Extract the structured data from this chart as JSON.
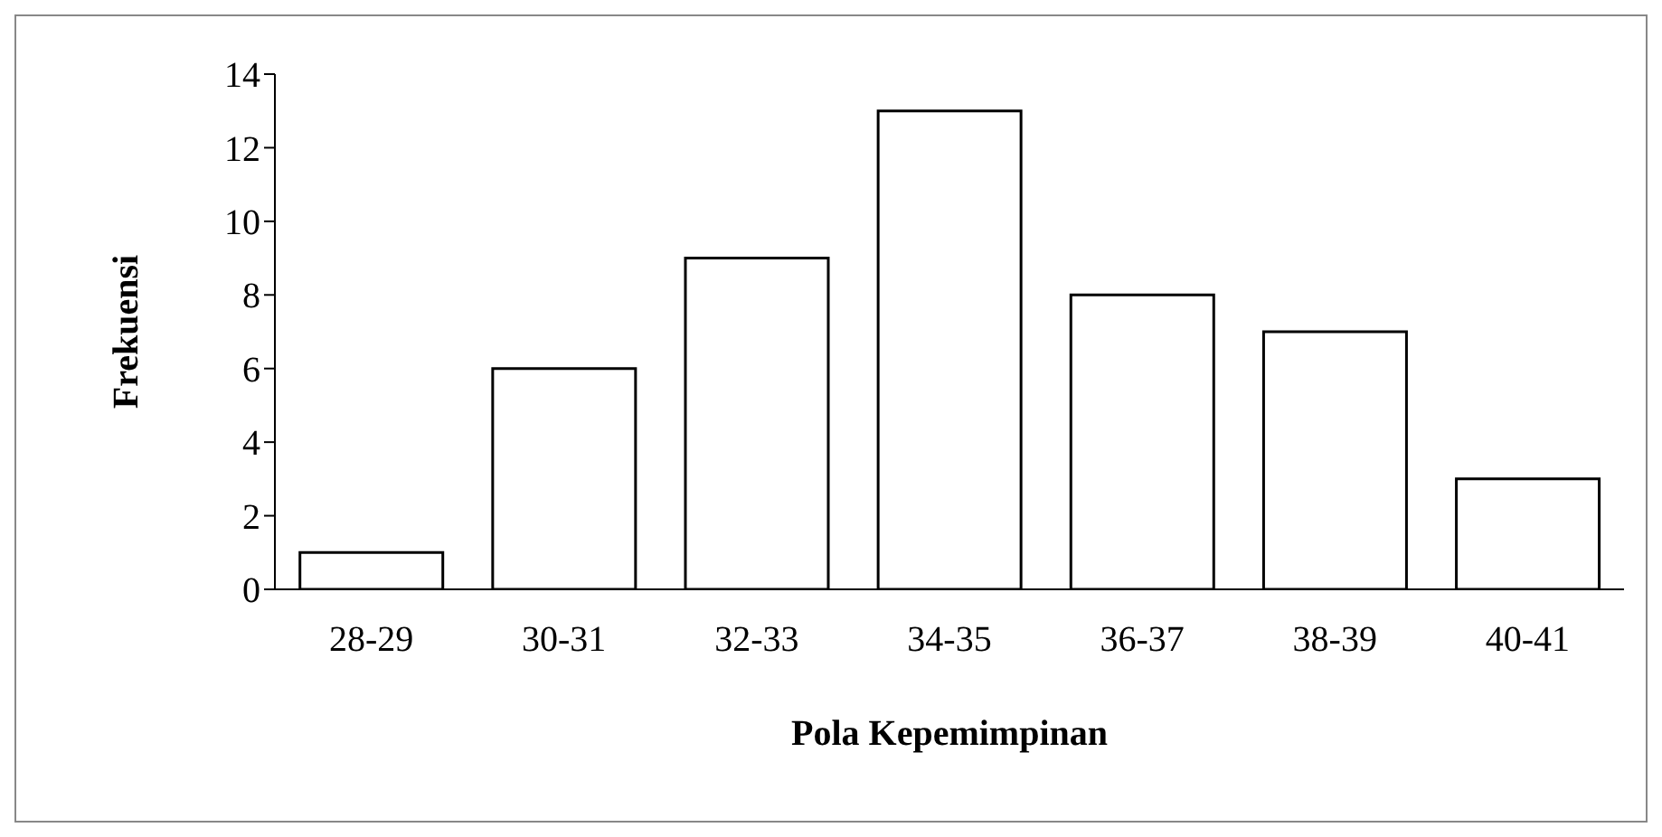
{
  "chart_data": {
    "type": "bar",
    "xlabel": "Pola Kepemimpinan",
    "ylabel": "Frekuensi",
    "categories": [
      "28-29",
      "30-31",
      "32-33",
      "34-35",
      "36-37",
      "38-39",
      "40-41"
    ],
    "values": [
      1,
      6,
      9,
      13,
      8,
      7,
      3
    ],
    "color": "#ffffff",
    "ylim": [
      0,
      14
    ],
    "yticks": [
      0,
      2,
      4,
      6,
      8,
      10,
      12,
      14
    ],
    "grid": false,
    "legend": false
  }
}
